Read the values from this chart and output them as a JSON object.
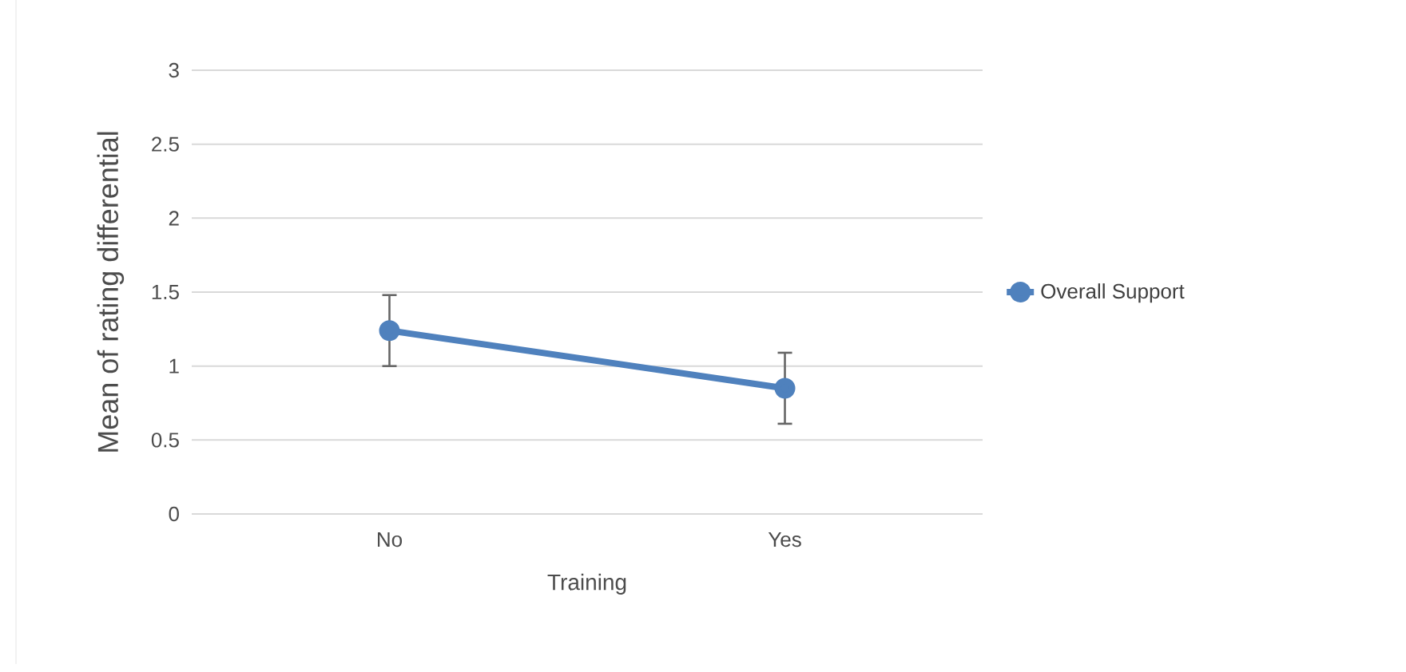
{
  "chart_data": {
    "type": "line",
    "xlabel": "Training",
    "ylabel": "Mean of rating differential",
    "categories": [
      "No",
      "Yes"
    ],
    "series": [
      {
        "name": "Overall Support",
        "color": "#4f81bd",
        "values": [
          1.24,
          0.85
        ],
        "errors": [
          0.24,
          0.24
        ]
      }
    ],
    "ylim": [
      0,
      3
    ],
    "yticks": [
      0,
      0.5,
      1,
      1.5,
      2,
      2.5,
      3
    ],
    "grid": "y",
    "legend": "right",
    "marker": "circle",
    "line_style": "solid"
  }
}
